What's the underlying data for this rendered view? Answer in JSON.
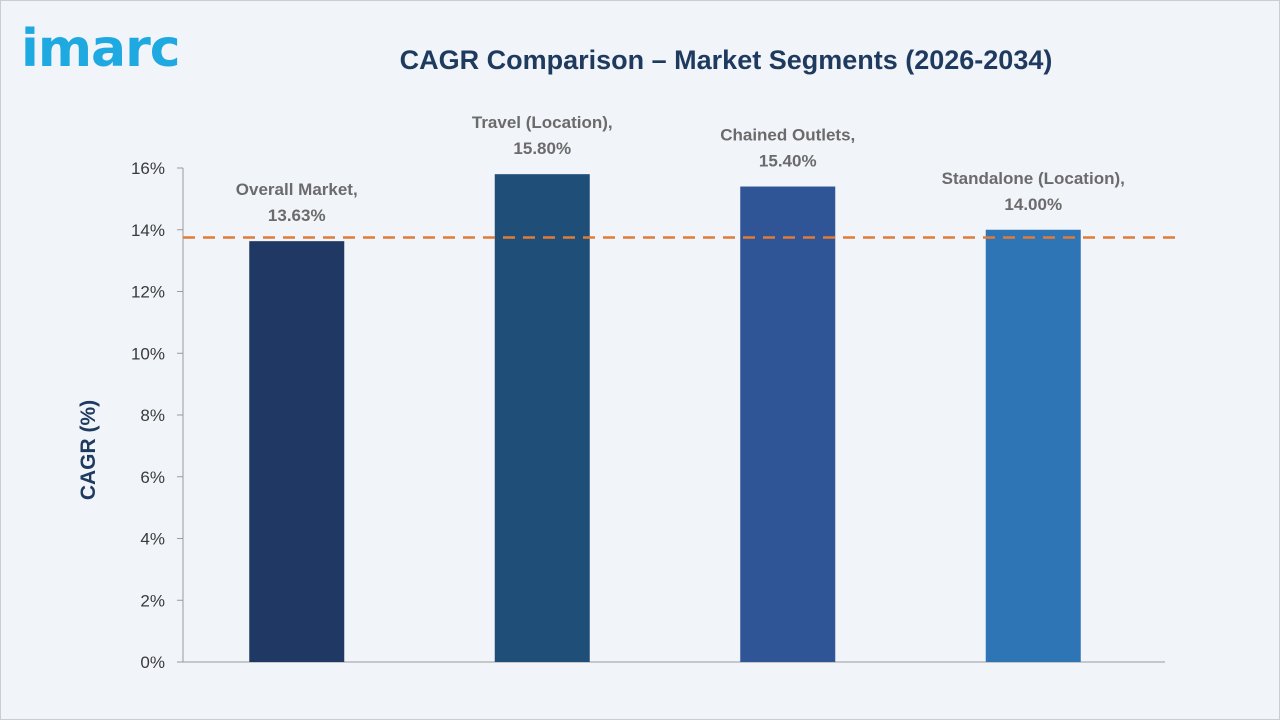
{
  "brand": {
    "logo_text": "imarc",
    "logo_color": "#1fa9e1"
  },
  "chart_data": {
    "type": "bar",
    "title": "CAGR Comparison – Market Segments (2026-2034)",
    "ylabel": "CAGR (%)",
    "xlabel": "",
    "ylim": [
      0,
      16
    ],
    "y_ticks": [
      0,
      2,
      4,
      6,
      8,
      10,
      12,
      14,
      16
    ],
    "y_tick_labels": [
      "0%",
      "2%",
      "4%",
      "6%",
      "8%",
      "10%",
      "12%",
      "14%",
      "16%"
    ],
    "categories": [
      "Overall Market",
      "Travel (Location)",
      "Chained Outlets",
      "Standalone (Location)"
    ],
    "values": [
      13.63,
      15.8,
      15.4,
      14.0
    ],
    "data_labels": [
      [
        "Overall Market,",
        "13.63%"
      ],
      [
        "Travel (Location),",
        "15.80%"
      ],
      [
        "Chained Outlets,",
        "15.40%"
      ],
      [
        "Standalone (Location),",
        "14.00%"
      ]
    ],
    "bar_colors": [
      "#203864",
      "#1f4e79",
      "#2f5597",
      "#2e75b6"
    ],
    "reference_line": {
      "value": 13.75,
      "style": "dashed",
      "color": "#e07b39"
    },
    "grid": false,
    "legend": "none"
  }
}
